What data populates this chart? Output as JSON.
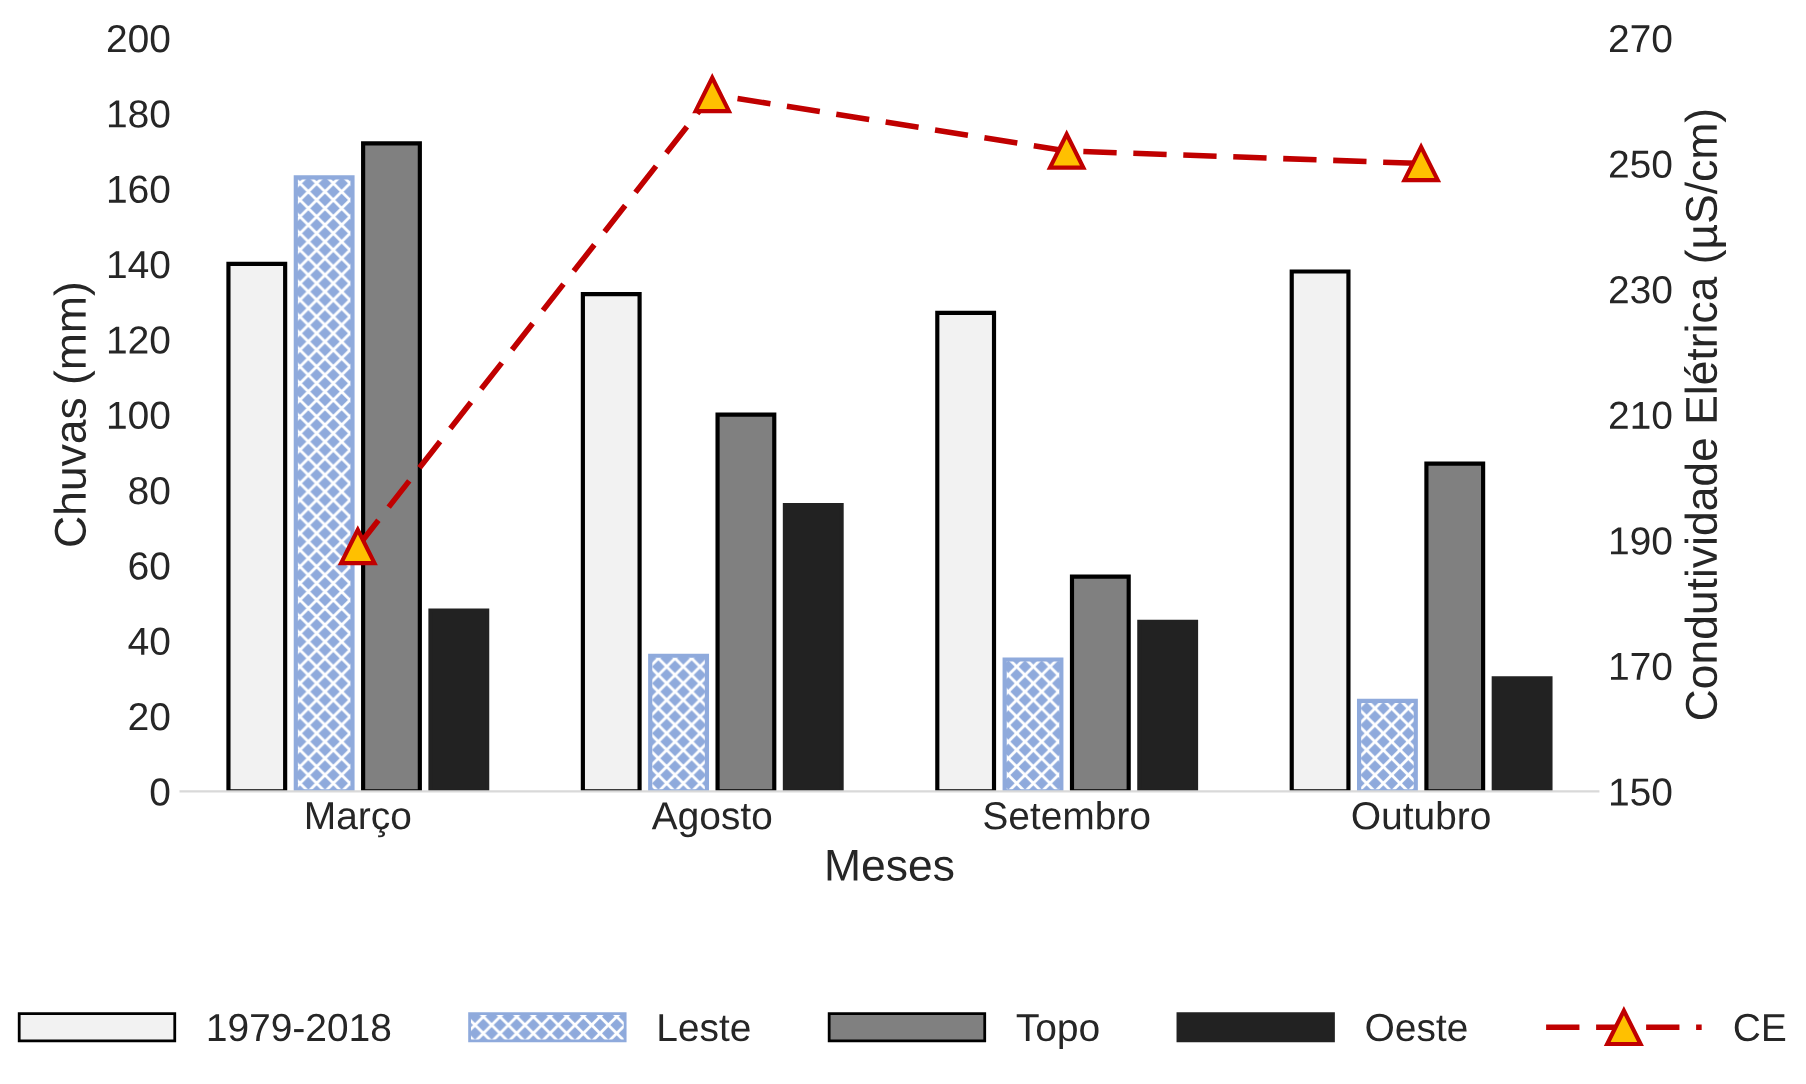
{
  "chart_data": {
    "type": "bar",
    "xlabel": "Meses",
    "ylabel": "Chuvas (mm)",
    "y2label": "Condutividade Elétrica (µS/cm)",
    "categories": [
      "Março",
      "Agosto",
      "Setembro",
      "Outubro"
    ],
    "series": [
      {
        "name": "1979-2018",
        "color": "#f2f2f2",
        "values": [
          140,
          132,
          127,
          138
        ]
      },
      {
        "name": "Leste",
        "color": "#8faadc",
        "values": [
          163,
          36,
          35,
          24
        ]
      },
      {
        "name": "Topo",
        "color": "#808080",
        "values": [
          172,
          100,
          57,
          87
        ]
      },
      {
        "name": "Oeste",
        "color": "#222222",
        "values": [
          48,
          76,
          45,
          30
        ]
      },
      {
        "name": "CE",
        "type": "line",
        "axis": "y2",
        "color": "#c00000",
        "values": [
          189,
          261,
          252,
          250
        ],
        "marker": "triangle",
        "line_style": "dashed"
      }
    ],
    "ylim": [
      0,
      200
    ],
    "yticks": [
      0,
      20,
      40,
      60,
      80,
      100,
      120,
      140,
      160,
      180,
      200
    ],
    "y2lim": [
      150,
      270
    ],
    "y2ticks": [
      150,
      170,
      190,
      210,
      230,
      250,
      270
    ],
    "grid": false,
    "legend": "bottom"
  }
}
